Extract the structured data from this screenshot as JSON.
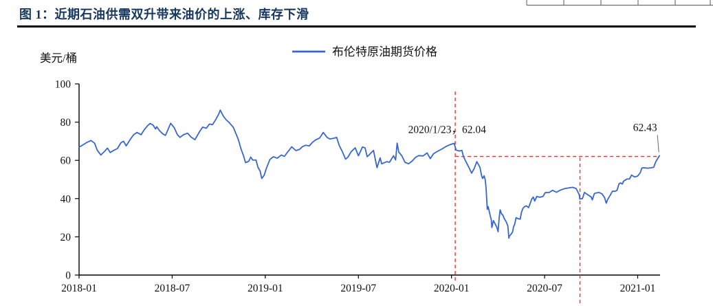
{
  "header": {
    "title": "图 1：近期石油供需双升带来油价的上涨、库存下滑"
  },
  "colors": {
    "title": "#17375e",
    "series_line": "#3565d4",
    "reference": "#fe2a2a",
    "axis": "#000000"
  },
  "chart_data": {
    "type": "line",
    "title": "图 1：近期石油供需双升带来油价的上涨、库存下滑",
    "ylabel": "美元/桶",
    "xlabel": "",
    "grid": false,
    "legend_position": "top-center",
    "xlim": [
      2018.0,
      2021.12
    ],
    "ylim": [
      0,
      100
    ],
    "yticks": [
      0,
      20,
      40,
      60,
      80,
      100
    ],
    "xticks": [
      {
        "value": 2018.0,
        "label": "2018-01"
      },
      {
        "value": 2018.5,
        "label": "2018-07"
      },
      {
        "value": 2019.0,
        "label": "2019-01"
      },
      {
        "value": 2019.5,
        "label": "2019-07"
      },
      {
        "value": 2020.0,
        "label": "2020-01"
      },
      {
        "value": 2020.5,
        "label": "2020-07"
      },
      {
        "value": 2021.0,
        "label": "2021-01"
      }
    ],
    "annotations": [
      {
        "text": "2020/1/23，62.04",
        "x": 2020.06,
        "y": 62.04
      },
      {
        "text": "62.43",
        "x": 2021.117,
        "y": 62.43
      }
    ],
    "reference_lines": [
      {
        "type": "vline",
        "x": 2020.02,
        "y_top": 96.0,
        "y_bottom": -4.3,
        "style": "dashed"
      },
      {
        "type": "vline",
        "x": 2020.69,
        "y_top": 61.5,
        "y_bottom": -16.2,
        "style": "dashed"
      },
      {
        "type": "hline",
        "y": 62.04,
        "x_start": 2020.02,
        "x_end": 2021.105,
        "style": "dashed"
      }
    ],
    "series": [
      {
        "name": "布伦特原油期货价格",
        "color": "#3565d4",
        "points": [
          [
            2018.0,
            66.9
          ],
          [
            2018.019,
            68.0
          ],
          [
            2018.042,
            69.4
          ],
          [
            2018.064,
            70.4
          ],
          [
            2018.083,
            69.0
          ],
          [
            2018.097,
            65.4
          ],
          [
            2018.117,
            62.8
          ],
          [
            2018.136,
            64.6
          ],
          [
            2018.153,
            66.4
          ],
          [
            2018.167,
            64.1
          ],
          [
            2018.186,
            65.2
          ],
          [
            2018.206,
            66.2
          ],
          [
            2018.225,
            69.2
          ],
          [
            2018.239,
            70.0
          ],
          [
            2018.253,
            67.6
          ],
          [
            2018.275,
            71.0
          ],
          [
            2018.294,
            73.5
          ],
          [
            2018.311,
            74.6
          ],
          [
            2018.333,
            73.4
          ],
          [
            2018.35,
            76.0
          ],
          [
            2018.369,
            78.2
          ],
          [
            2018.381,
            79.3
          ],
          [
            2018.397,
            78.5
          ],
          [
            2018.411,
            76.4
          ],
          [
            2018.417,
            77.6
          ],
          [
            2018.433,
            75.4
          ],
          [
            2018.45,
            73.8
          ],
          [
            2018.464,
            73.1
          ],
          [
            2018.492,
            79.4
          ],
          [
            2018.511,
            77.1
          ],
          [
            2018.528,
            73.4
          ],
          [
            2018.542,
            72.0
          ],
          [
            2018.561,
            73.4
          ],
          [
            2018.583,
            74.2
          ],
          [
            2018.6,
            72.3
          ],
          [
            2018.622,
            70.8
          ],
          [
            2018.647,
            75.0
          ],
          [
            2018.664,
            77.4
          ],
          [
            2018.683,
            76.8
          ],
          [
            2018.7,
            79.0
          ],
          [
            2018.717,
            78.7
          ],
          [
            2018.733,
            81.2
          ],
          [
            2018.75,
            84.2
          ],
          [
            2018.758,
            86.3
          ],
          [
            2018.775,
            83.1
          ],
          [
            2018.789,
            81.3
          ],
          [
            2018.806,
            79.8
          ],
          [
            2018.828,
            77.3
          ],
          [
            2018.847,
            72.9
          ],
          [
            2018.856,
            70.7
          ],
          [
            2018.869,
            66.1
          ],
          [
            2018.883,
            62.5
          ],
          [
            2018.894,
            58.8
          ],
          [
            2018.911,
            59.5
          ],
          [
            2018.922,
            61.7
          ],
          [
            2018.933,
            60.1
          ],
          [
            2018.95,
            60.2
          ],
          [
            2018.961,
            56.3
          ],
          [
            2018.972,
            54.4
          ],
          [
            2018.981,
            50.5
          ],
          [
            2018.994,
            52.2
          ],
          [
            2019.006,
            55.9
          ],
          [
            2019.025,
            60.5
          ],
          [
            2019.044,
            61.9
          ],
          [
            2019.064,
            61.1
          ],
          [
            2019.086,
            62.8
          ],
          [
            2019.103,
            62.1
          ],
          [
            2019.122,
            64.6
          ],
          [
            2019.142,
            67.1
          ],
          [
            2019.164,
            65.1
          ],
          [
            2019.183,
            65.7
          ],
          [
            2019.2,
            67.2
          ],
          [
            2019.217,
            67.9
          ],
          [
            2019.236,
            67.6
          ],
          [
            2019.253,
            69.4
          ],
          [
            2019.269,
            70.6
          ],
          [
            2019.292,
            71.7
          ],
          [
            2019.311,
            74.6
          ],
          [
            2019.331,
            72.1
          ],
          [
            2019.347,
            71.2
          ],
          [
            2019.369,
            71.6
          ],
          [
            2019.383,
            72.0
          ],
          [
            2019.397,
            67.8
          ],
          [
            2019.414,
            64.5
          ],
          [
            2019.431,
            60.6
          ],
          [
            2019.444,
            61.7
          ],
          [
            2019.461,
            64.5
          ],
          [
            2019.483,
            66.6
          ],
          [
            2019.5,
            62.4
          ],
          [
            2019.522,
            67.0
          ],
          [
            2019.536,
            66.5
          ],
          [
            2019.547,
            61.9
          ],
          [
            2019.561,
            63.2
          ],
          [
            2019.581,
            65.2
          ],
          [
            2019.6,
            56.2
          ],
          [
            2019.617,
            61.3
          ],
          [
            2019.625,
            58.2
          ],
          [
            2019.653,
            59.3
          ],
          [
            2019.667,
            59.0
          ],
          [
            2019.689,
            62.4
          ],
          [
            2019.7,
            60.2
          ],
          [
            2019.708,
            69.0
          ],
          [
            2019.717,
            64.3
          ],
          [
            2019.733,
            62.4
          ],
          [
            2019.75,
            59.0
          ],
          [
            2019.769,
            58.2
          ],
          [
            2019.786,
            59.4
          ],
          [
            2019.808,
            61.7
          ],
          [
            2019.825,
            62.5
          ],
          [
            2019.847,
            62.3
          ],
          [
            2019.869,
            63.9
          ],
          [
            2019.886,
            60.9
          ],
          [
            2019.903,
            63.4
          ],
          [
            2019.919,
            64.4
          ],
          [
            2019.936,
            65.3
          ],
          [
            2019.953,
            66.2
          ],
          [
            2019.969,
            67.2
          ],
          [
            2019.992,
            68.2
          ],
          [
            2020.014,
            68.9
          ],
          [
            2020.025,
            65.4
          ],
          [
            2020.042,
            64.9
          ],
          [
            2020.056,
            65.2
          ],
          [
            2020.064,
            62.04
          ],
          [
            2020.075,
            59.8
          ],
          [
            2020.092,
            56.6
          ],
          [
            2020.108,
            53.3
          ],
          [
            2020.122,
            55.8
          ],
          [
            2020.136,
            59.3
          ],
          [
            2020.153,
            56.3
          ],
          [
            2020.161,
            52.2
          ],
          [
            2020.167,
            50.5
          ],
          [
            2020.175,
            51.9
          ],
          [
            2020.181,
            49.9
          ],
          [
            2020.186,
            45.3
          ],
          [
            2020.192,
            34.4
          ],
          [
            2020.197,
            35.8
          ],
          [
            2020.203,
            33.2
          ],
          [
            2020.214,
            28.7
          ],
          [
            2020.217,
            24.9
          ],
          [
            2020.225,
            28.5
          ],
          [
            2020.233,
            27.0
          ],
          [
            2020.244,
            24.9
          ],
          [
            2020.25,
            22.7
          ],
          [
            2020.256,
            29.9
          ],
          [
            2020.261,
            34.1
          ],
          [
            2020.269,
            31.9
          ],
          [
            2020.275,
            31.5
          ],
          [
            2020.283,
            29.6
          ],
          [
            2020.294,
            27.8
          ],
          [
            2020.303,
            25.6
          ],
          [
            2020.308,
            19.3
          ],
          [
            2020.311,
            20.4
          ],
          [
            2020.319,
            21.3
          ],
          [
            2020.328,
            22.5
          ],
          [
            2020.333,
            25.3
          ],
          [
            2020.339,
            26.4
          ],
          [
            2020.347,
            30.0
          ],
          [
            2020.358,
            29.5
          ],
          [
            2020.369,
            29.2
          ],
          [
            2020.375,
            32.5
          ],
          [
            2020.383,
            34.8
          ],
          [
            2020.392,
            35.8
          ],
          [
            2020.403,
            36.2
          ],
          [
            2020.414,
            35.3
          ],
          [
            2020.431,
            39.8
          ],
          [
            2020.439,
            40.8
          ],
          [
            2020.447,
            38.7
          ],
          [
            2020.458,
            41.1
          ],
          [
            2020.475,
            40.7
          ],
          [
            2020.492,
            41.2
          ],
          [
            2020.503,
            43.1
          ],
          [
            2020.525,
            43.2
          ],
          [
            2020.542,
            44.3
          ],
          [
            2020.564,
            43.3
          ],
          [
            2020.583,
            44.4
          ],
          [
            2020.608,
            45.2
          ],
          [
            2020.625,
            45.5
          ],
          [
            2020.65,
            45.9
          ],
          [
            2020.669,
            45.3
          ],
          [
            2020.686,
            42.0
          ],
          [
            2020.689,
            39.8
          ],
          [
            2020.703,
            40.0
          ],
          [
            2020.714,
            43.2
          ],
          [
            2020.733,
            41.9
          ],
          [
            2020.75,
            40.9
          ],
          [
            2020.756,
            39.3
          ],
          [
            2020.767,
            42.6
          ],
          [
            2020.775,
            42.9
          ],
          [
            2020.792,
            43.2
          ],
          [
            2020.808,
            42.5
          ],
          [
            2020.822,
            40.5
          ],
          [
            2020.831,
            37.6
          ],
          [
            2020.839,
            39.6
          ],
          [
            2020.847,
            40.9
          ],
          [
            2020.856,
            42.4
          ],
          [
            2020.864,
            43.8
          ],
          [
            2020.878,
            43.8
          ],
          [
            2020.889,
            44.3
          ],
          [
            2020.9,
            47.8
          ],
          [
            2020.908,
            48.2
          ],
          [
            2020.917,
            47.6
          ],
          [
            2020.925,
            49.2
          ],
          [
            2020.942,
            50.2
          ],
          [
            2020.956,
            50.3
          ],
          [
            2020.967,
            52.3
          ],
          [
            2020.983,
            51.3
          ],
          [
            2021.0,
            51.8
          ],
          [
            2021.014,
            53.6
          ],
          [
            2021.022,
            56.0
          ],
          [
            2021.036,
            56.1
          ],
          [
            2021.053,
            55.9
          ],
          [
            2021.072,
            56.1
          ],
          [
            2021.086,
            56.4
          ],
          [
            2021.097,
            59.3
          ],
          [
            2021.108,
            61.1
          ],
          [
            2021.117,
            62.43
          ]
        ]
      }
    ]
  }
}
